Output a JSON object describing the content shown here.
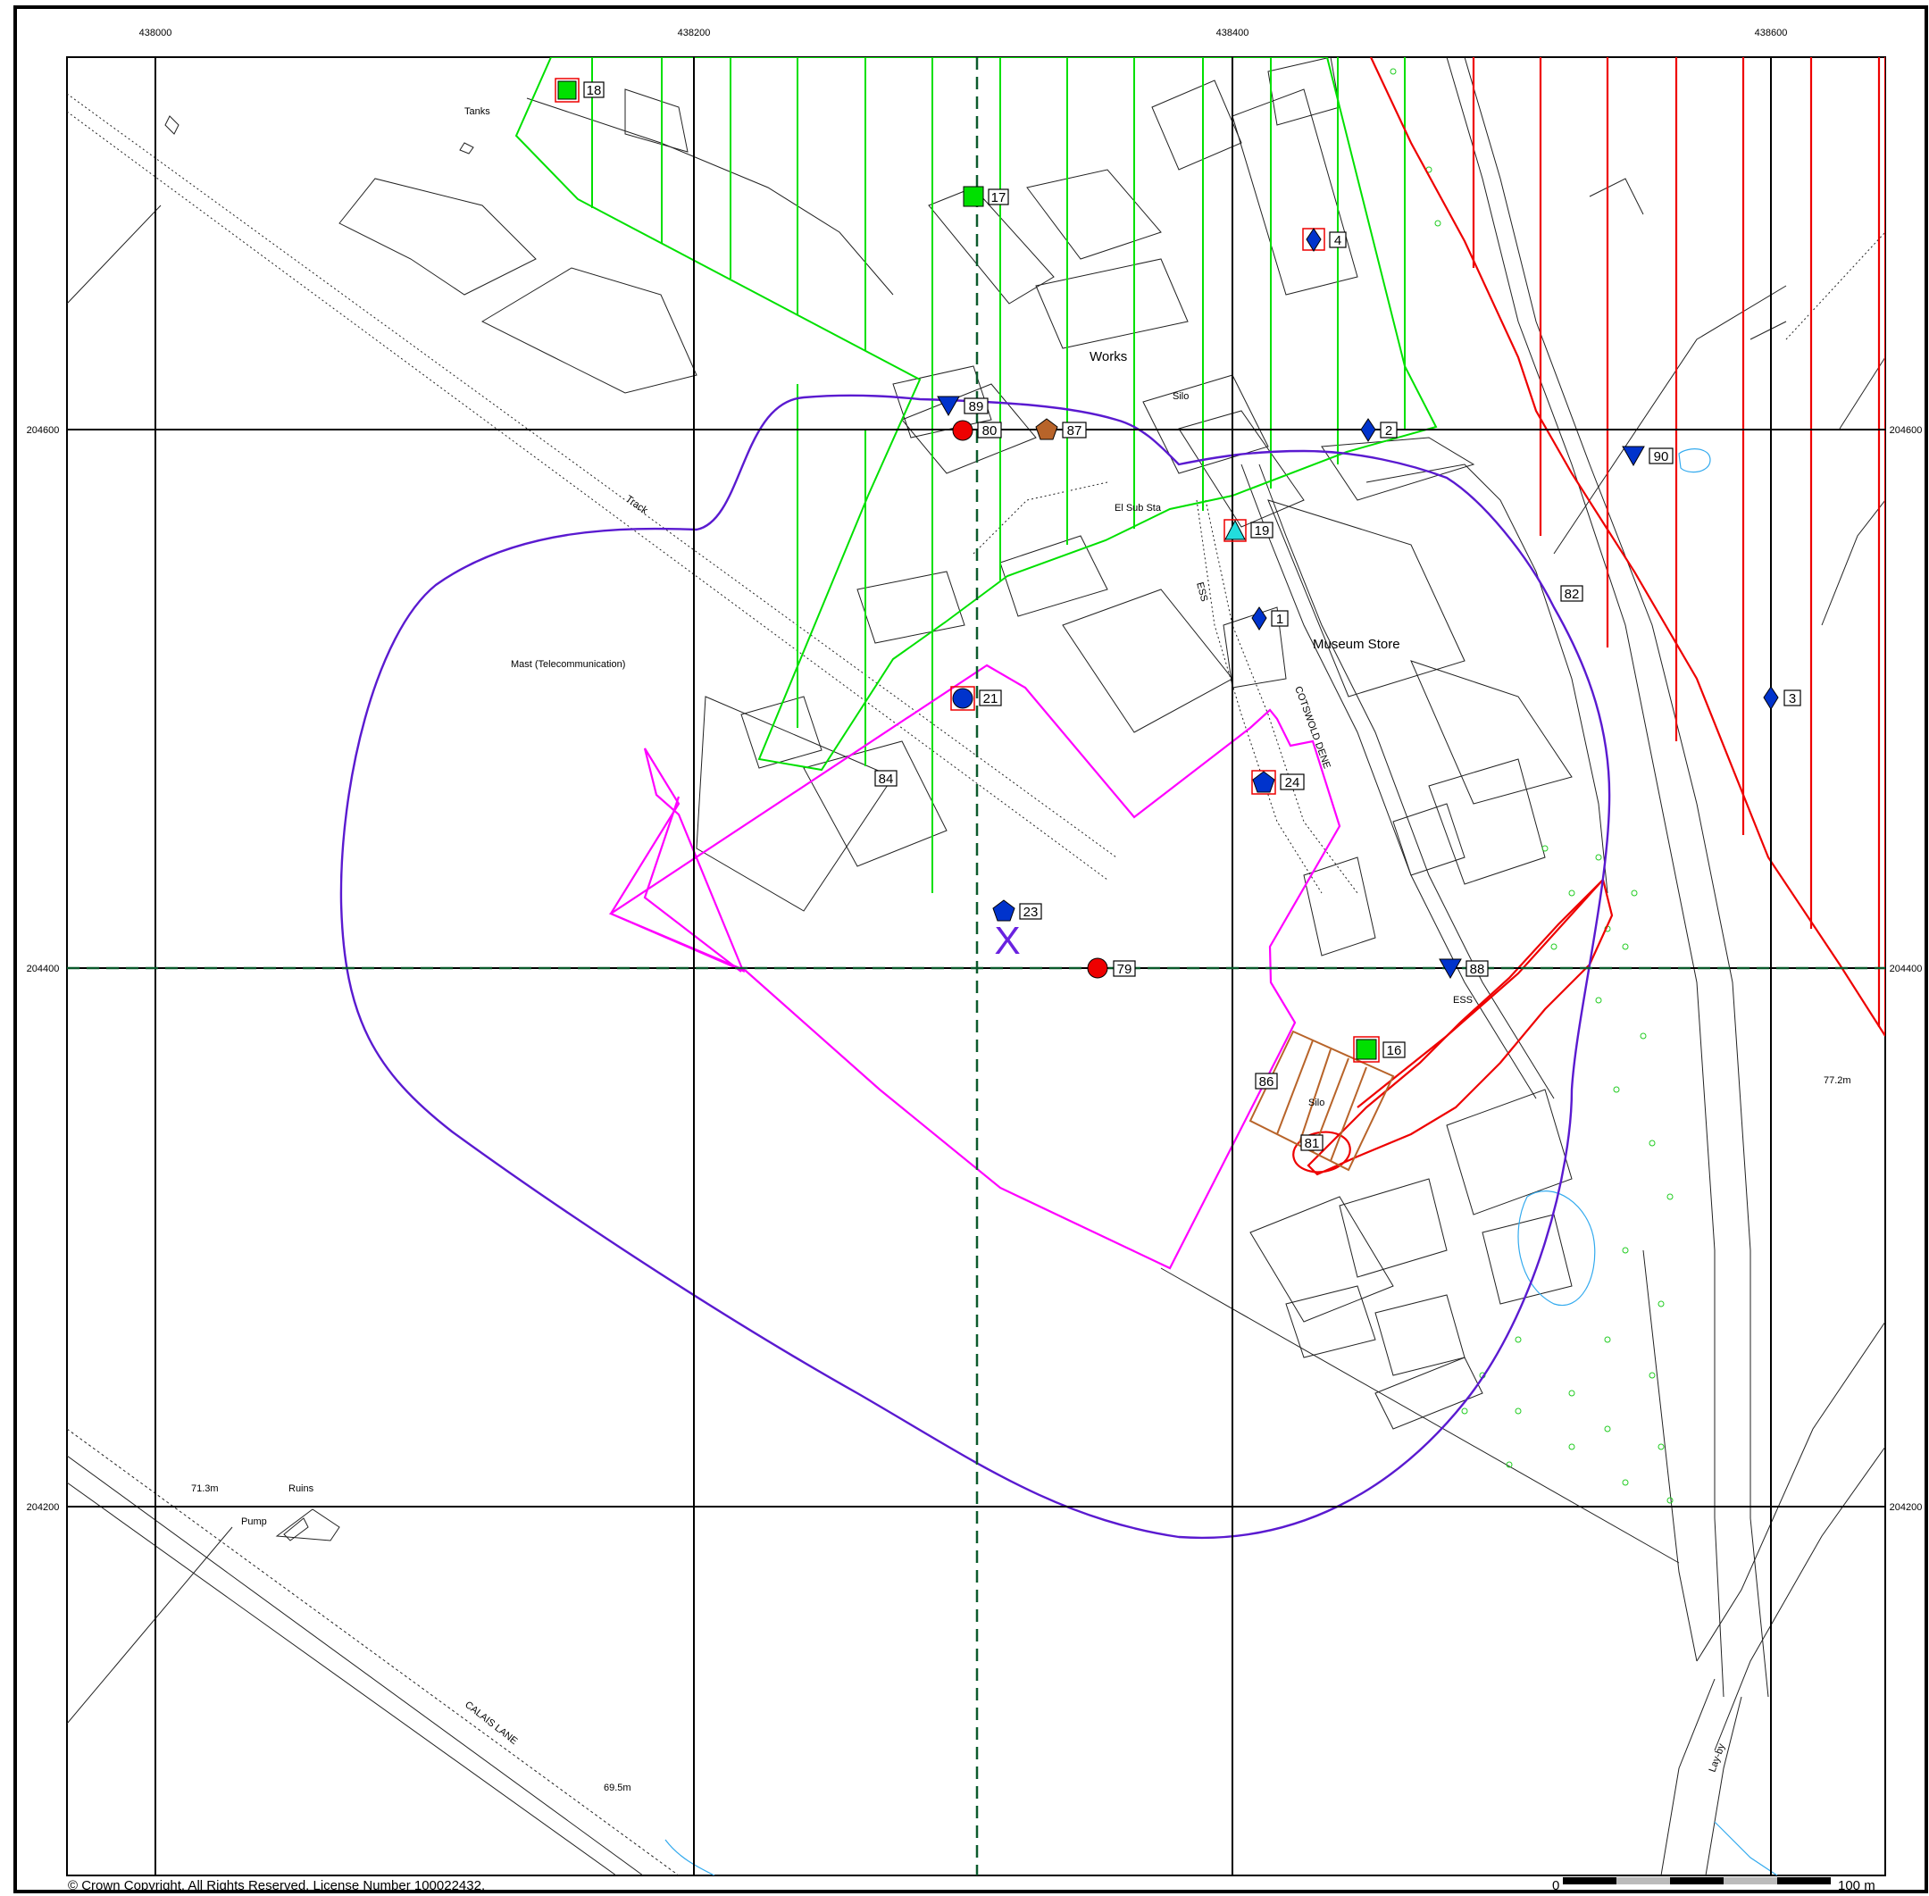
{
  "grid": {
    "eastings": [
      "438000",
      "438200",
      "438400",
      "438600"
    ],
    "northings": [
      "204600",
      "204400",
      "204200"
    ]
  },
  "place_labels": {
    "tanks": "Tanks",
    "works": "Works",
    "silo_top": "Silo",
    "track": "Track",
    "el_sub_sta": "El Sub Sta",
    "ess_top": "ESS",
    "museum_store": "Museum Store",
    "cotswold_dene": "COTSWOLD DENE",
    "mast": "Mast (Telecommunication)",
    "ess_bottom": "ESS",
    "silo_bottom": "Silo",
    "spot_height_east": "77.2m",
    "spot_height_west": "71.3m",
    "ruins": "Ruins",
    "pump": "Pump",
    "calais_lane": "CALAIS LANE",
    "spot_height_south": "69.5m",
    "layby": "Lay-by"
  },
  "markers": [
    {
      "id": "18",
      "symbol": "green-square"
    },
    {
      "id": "17",
      "symbol": "green-square"
    },
    {
      "id": "4",
      "symbol": "blue-diamond"
    },
    {
      "id": "89",
      "symbol": "blue-triangle-down"
    },
    {
      "id": "80",
      "symbol": "red-circle"
    },
    {
      "id": "87",
      "symbol": "brown-pentagon"
    },
    {
      "id": "2",
      "symbol": "blue-diamond"
    },
    {
      "id": "90",
      "symbol": "blue-triangle-down"
    },
    {
      "id": "19",
      "symbol": "cyan-triangle-up"
    },
    {
      "id": "1",
      "symbol": "blue-diamond"
    },
    {
      "id": "82",
      "symbol": "label-only"
    },
    {
      "id": "3",
      "symbol": "blue-diamond"
    },
    {
      "id": "21",
      "symbol": "blue-circle"
    },
    {
      "id": "24",
      "symbol": "blue-pentagon"
    },
    {
      "id": "84",
      "symbol": "label-only"
    },
    {
      "id": "23",
      "symbol": "blue-pentagon"
    },
    {
      "id": "79",
      "symbol": "red-circle"
    },
    {
      "id": "88",
      "symbol": "blue-triangle-down"
    },
    {
      "id": "16",
      "symbol": "green-square"
    },
    {
      "id": "86",
      "symbol": "label-only"
    },
    {
      "id": "81",
      "symbol": "label-only"
    }
  ],
  "site_marker": "X",
  "footer": {
    "copyright": "© Crown Copyright. All Rights Reserved. License Number 100022432.",
    "scale_start": "0",
    "scale_end": "100 m"
  },
  "colors": {
    "green_zone": "#00e000",
    "red_zone": "#ee0000",
    "magenta_boundary": "#ff00ff",
    "buffer": "#5a1ad0",
    "brown_zone": "#b8642a",
    "dashed_line": "#0b5a2c",
    "water": "#33aaee"
  }
}
